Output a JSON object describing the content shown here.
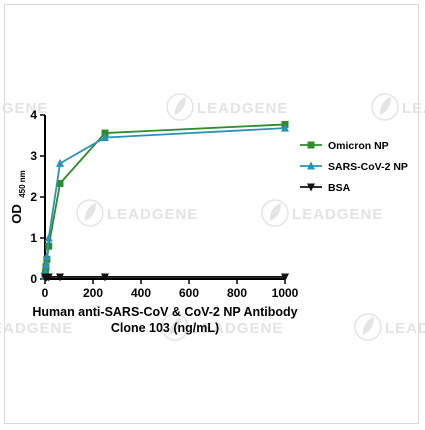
{
  "watermark": {
    "brand": "LEADGENE",
    "icon": "leaf-logo-icon"
  },
  "chart_data": {
    "type": "line",
    "xlabel": "Human anti-SARS-CoV & CoV-2 NP Antibody",
    "xlabel_line2": "Clone 103 (ng/mL)",
    "ylabel": "OD",
    "ylabel_subscript": "450 nm",
    "xlim": [
      0,
      1000
    ],
    "ylim": [
      0,
      4
    ],
    "xticks": [
      0,
      200,
      400,
      600,
      800,
      1000
    ],
    "yticks": [
      0,
      1,
      2,
      3,
      4
    ],
    "grid": false,
    "legend_position": "right",
    "series": [
      {
        "name": "Omicron NP",
        "marker": "square",
        "color": "#2e8b2e",
        "x": [
          0,
          1.95,
          3.9,
          7.8,
          15.6,
          62.5,
          250,
          1000
        ],
        "y": [
          0.08,
          0.15,
          0.3,
          0.48,
          0.8,
          2.33,
          3.56,
          3.77
        ]
      },
      {
        "name": "SARS-CoV-2 NP",
        "marker": "triangle-up",
        "color": "#2a93b5",
        "x": [
          0,
          1.95,
          3.9,
          7.8,
          15.6,
          62.5,
          250,
          1000
        ],
        "y": [
          0.08,
          0.17,
          0.35,
          0.55,
          1.0,
          2.82,
          3.45,
          3.68
        ]
      },
      {
        "name": "BSA",
        "marker": "triangle-down",
        "color": "#111111",
        "x": [
          0,
          1.95,
          3.9,
          7.8,
          15.6,
          62.5,
          250,
          1000
        ],
        "y": [
          0.05,
          0.05,
          0.05,
          0.05,
          0.05,
          0.05,
          0.05,
          0.05
        ]
      }
    ]
  }
}
